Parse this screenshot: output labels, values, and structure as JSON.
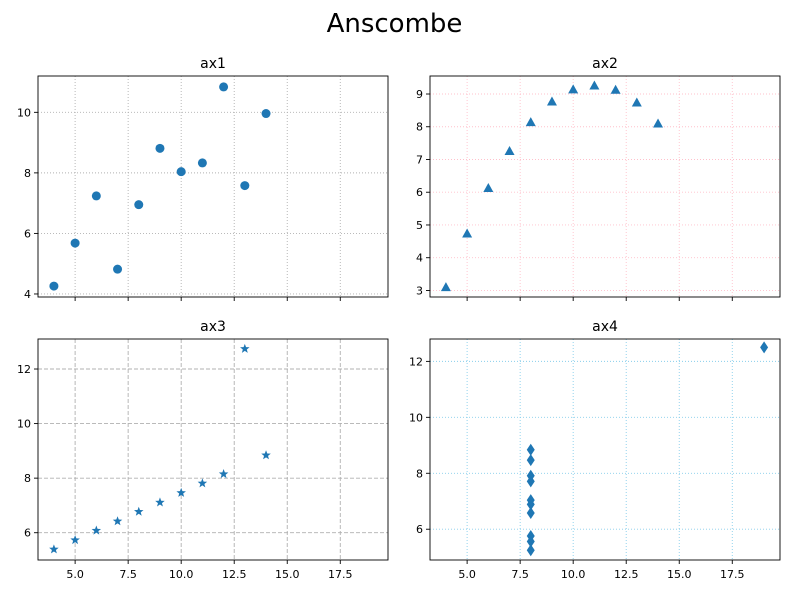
{
  "figure": {
    "title": "Anscombe"
  },
  "chart_data": [
    {
      "type": "scatter",
      "title": "ax1",
      "marker": "circle",
      "grid": true,
      "grid_style": "dotted",
      "grid_color": "#b0b0b0",
      "color": "#1f77b4",
      "xlim": [
        3.25,
        19.75
      ],
      "ylim": [
        3.9,
        11.2
      ],
      "xticks": [
        5.0,
        7.5,
        10.0,
        12.5,
        15.0,
        17.5
      ],
      "xtick_labels": [],
      "yticks": [
        4,
        6,
        8,
        10
      ],
      "ytick_labels": [
        "4",
        "6",
        "8",
        "10"
      ],
      "x": [
        10,
        8,
        13,
        9,
        11,
        14,
        6,
        4,
        12,
        7,
        5
      ],
      "y": [
        8.04,
        6.95,
        7.58,
        8.81,
        8.33,
        9.96,
        7.24,
        4.26,
        10.84,
        4.82,
        5.68
      ]
    },
    {
      "type": "scatter",
      "title": "ax2",
      "marker": "triangle",
      "grid": true,
      "grid_style": "dotted",
      "grid_color": "#ffc0cb",
      "color": "#1f77b4",
      "xlim": [
        3.25,
        19.75
      ],
      "ylim": [
        2.8,
        9.55
      ],
      "xticks": [
        5.0,
        7.5,
        10.0,
        12.5,
        15.0,
        17.5
      ],
      "xtick_labels": [],
      "yticks": [
        3,
        4,
        5,
        6,
        7,
        8,
        9
      ],
      "ytick_labels": [
        "3",
        "4",
        "5",
        "6",
        "7",
        "8",
        "9"
      ],
      "x": [
        10,
        8,
        13,
        9,
        11,
        14,
        6,
        4,
        12,
        7,
        5
      ],
      "y": [
        9.14,
        8.14,
        8.74,
        8.77,
        9.26,
        8.1,
        6.13,
        3.1,
        9.13,
        7.26,
        4.74
      ]
    },
    {
      "type": "scatter",
      "title": "ax3",
      "marker": "star",
      "grid": true,
      "grid_style": "dashed",
      "grid_color": "#b0b0b0",
      "color": "#1f77b4",
      "xlim": [
        3.25,
        19.75
      ],
      "ylim": [
        5.0,
        13.1
      ],
      "xticks": [
        5.0,
        7.5,
        10.0,
        12.5,
        15.0,
        17.5
      ],
      "xtick_labels": [
        "5.0",
        "7.5",
        "10.0",
        "12.5",
        "15.0",
        "17.5"
      ],
      "yticks": [
        6,
        8,
        10,
        12
      ],
      "ytick_labels": [
        "6",
        "8",
        "10",
        "12"
      ],
      "x": [
        10,
        8,
        13,
        9,
        11,
        14,
        6,
        4,
        12,
        7,
        5
      ],
      "y": [
        7.46,
        6.77,
        12.74,
        7.11,
        7.81,
        8.84,
        6.08,
        5.39,
        8.15,
        6.42,
        5.73
      ]
    },
    {
      "type": "scatter",
      "title": "ax4",
      "marker": "diamond",
      "grid": true,
      "grid_style": "dotted",
      "grid_color": "#87ceeb",
      "color": "#1f77b4",
      "xlim": [
        3.25,
        19.75
      ],
      "ylim": [
        4.9,
        12.8
      ],
      "xticks": [
        5.0,
        7.5,
        10.0,
        12.5,
        15.0,
        17.5
      ],
      "xtick_labels": [
        "5.0",
        "7.5",
        "10.0",
        "12.5",
        "15.0",
        "17.5"
      ],
      "yticks": [
        6,
        8,
        10,
        12
      ],
      "ytick_labels": [
        "6",
        "8",
        "10",
        "12"
      ],
      "x": [
        8,
        8,
        8,
        8,
        8,
        8,
        8,
        19,
        8,
        8,
        8
      ],
      "y": [
        6.58,
        5.76,
        7.71,
        8.84,
        8.47,
        7.04,
        5.25,
        12.5,
        5.56,
        7.91,
        6.89
      ]
    }
  ]
}
